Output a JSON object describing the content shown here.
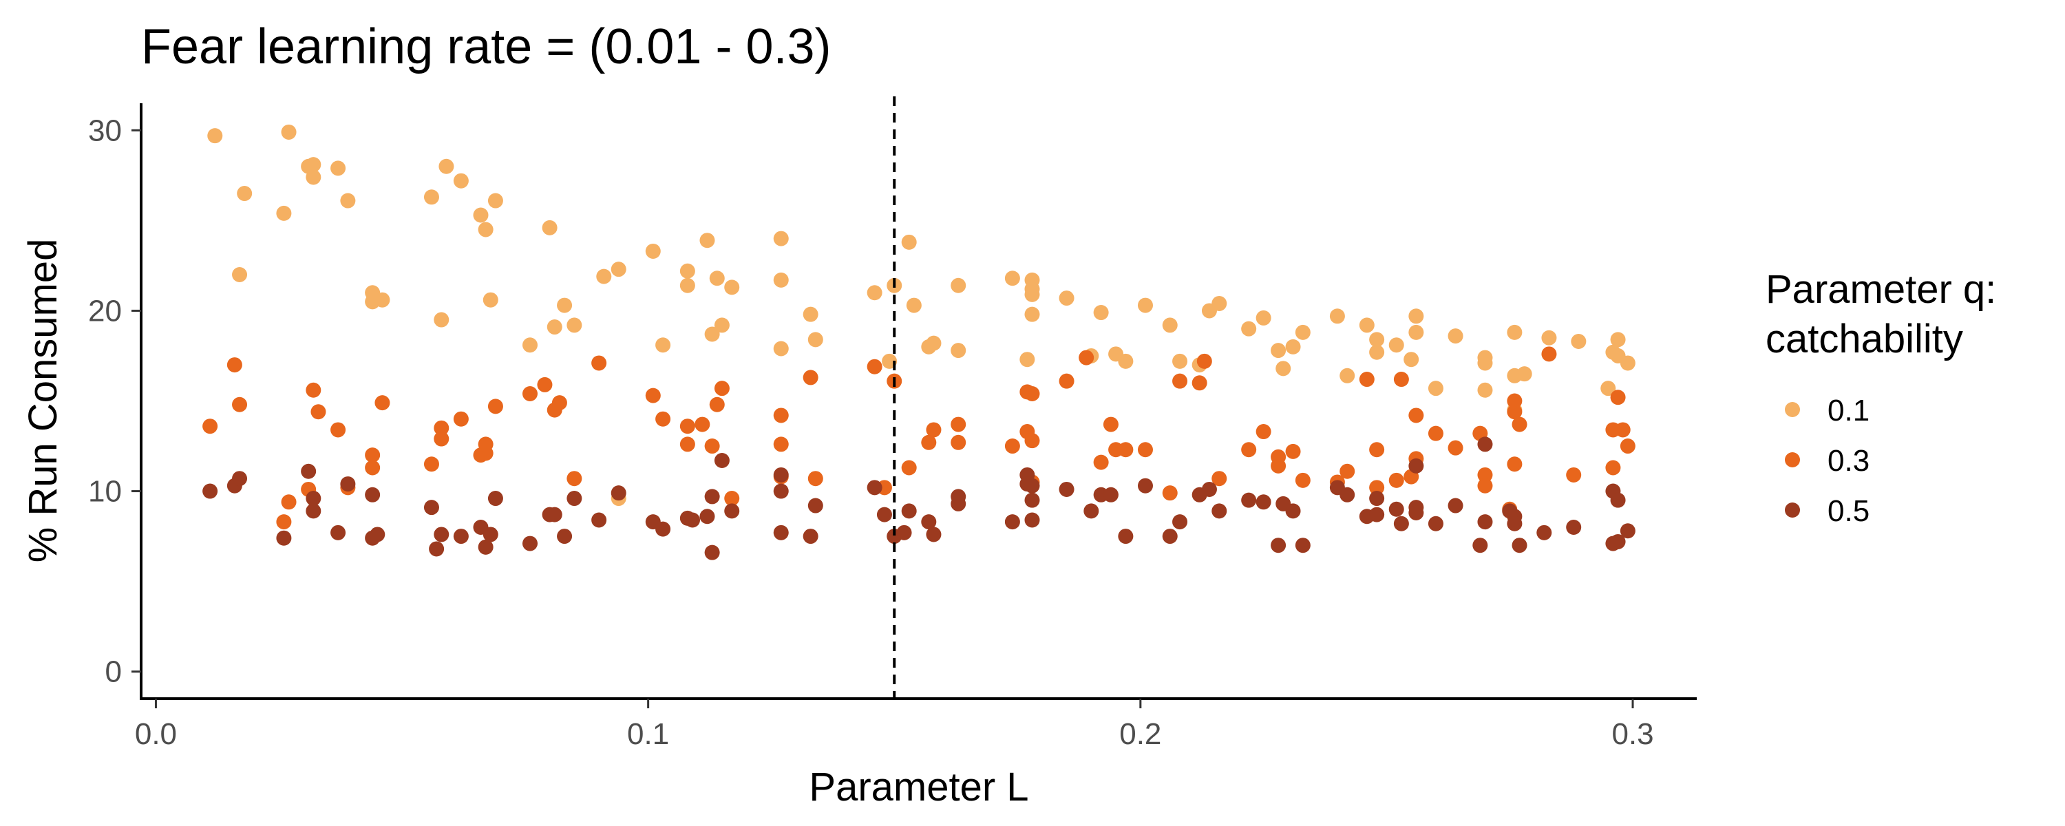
{
  "chart_data": {
    "type": "scatter",
    "title": "Fear learning rate = (0.01 - 0.3)",
    "xlabel": "Parameter L",
    "ylabel": "% Run Consumed",
    "xlim": [
      -0.003,
      0.313
    ],
    "ylim": [
      -1.5,
      31.5
    ],
    "xticks": [
      0.0,
      0.1,
      0.2,
      0.3
    ],
    "xtick_labels": [
      "0.0",
      "0.1",
      "0.2",
      "0.3"
    ],
    "yticks": [
      0,
      10,
      20,
      30
    ],
    "ytick_labels": [
      "0",
      "10",
      "20",
      "30"
    ],
    "grid": false,
    "reference_line": {
      "axis": "x",
      "value": 0.15,
      "style": "dashed"
    },
    "legend": {
      "title_lines": [
        "Parameter q:",
        "catchability"
      ],
      "position": "right"
    },
    "series": [
      {
        "name": "0.1",
        "color": "#f5b062",
        "points": [
          [
            0.012,
            29.7
          ],
          [
            0.017,
            22.0
          ],
          [
            0.018,
            26.5
          ],
          [
            0.026,
            25.4
          ],
          [
            0.027,
            29.9
          ],
          [
            0.031,
            28.0
          ],
          [
            0.032,
            28.1
          ],
          [
            0.032,
            27.4
          ],
          [
            0.037,
            27.9
          ],
          [
            0.039,
            26.1
          ],
          [
            0.044,
            21.0
          ],
          [
            0.044,
            20.5
          ],
          [
            0.046,
            20.6
          ],
          [
            0.056,
            26.3
          ],
          [
            0.058,
            19.5
          ],
          [
            0.059,
            28.0
          ],
          [
            0.062,
            27.2
          ],
          [
            0.066,
            25.3
          ],
          [
            0.067,
            24.5
          ],
          [
            0.068,
            20.6
          ],
          [
            0.069,
            26.1
          ],
          [
            0.076,
            18.1
          ],
          [
            0.08,
            24.6
          ],
          [
            0.081,
            19.1
          ],
          [
            0.083,
            20.3
          ],
          [
            0.085,
            19.2
          ],
          [
            0.091,
            21.9
          ],
          [
            0.094,
            22.3
          ],
          [
            0.094,
            9.6
          ],
          [
            0.101,
            23.3
          ],
          [
            0.103,
            18.1
          ],
          [
            0.108,
            22.2
          ],
          [
            0.108,
            21.4
          ],
          [
            0.112,
            23.9
          ],
          [
            0.113,
            18.7
          ],
          [
            0.114,
            21.8
          ],
          [
            0.115,
            19.2
          ],
          [
            0.117,
            21.3
          ],
          [
            0.127,
            24.0
          ],
          [
            0.127,
            21.7
          ],
          [
            0.127,
            17.9
          ],
          [
            0.133,
            19.8
          ],
          [
            0.134,
            18.4
          ],
          [
            0.146,
            21.0
          ],
          [
            0.149,
            17.2
          ],
          [
            0.15,
            21.4
          ],
          [
            0.153,
            23.8
          ],
          [
            0.154,
            20.3
          ],
          [
            0.157,
            18.0
          ],
          [
            0.158,
            18.2
          ],
          [
            0.163,
            21.4
          ],
          [
            0.163,
            17.8
          ],
          [
            0.174,
            21.8
          ],
          [
            0.177,
            17.3
          ],
          [
            0.178,
            21.7
          ],
          [
            0.178,
            21.2
          ],
          [
            0.178,
            20.9
          ],
          [
            0.178,
            19.8
          ],
          [
            0.185,
            20.7
          ],
          [
            0.19,
            17.5
          ],
          [
            0.192,
            19.9
          ],
          [
            0.195,
            17.6
          ],
          [
            0.197,
            17.2
          ],
          [
            0.201,
            20.3
          ],
          [
            0.206,
            19.2
          ],
          [
            0.208,
            17.2
          ],
          [
            0.212,
            17.0
          ],
          [
            0.214,
            20.0
          ],
          [
            0.216,
            20.4
          ],
          [
            0.222,
            19.0
          ],
          [
            0.225,
            19.6
          ],
          [
            0.228,
            17.8
          ],
          [
            0.229,
            16.8
          ],
          [
            0.231,
            18.0
          ],
          [
            0.233,
            18.8
          ],
          [
            0.24,
            19.7
          ],
          [
            0.242,
            16.4
          ],
          [
            0.246,
            19.2
          ],
          [
            0.248,
            18.4
          ],
          [
            0.248,
            17.7
          ],
          [
            0.252,
            18.1
          ],
          [
            0.255,
            17.3
          ],
          [
            0.256,
            19.7
          ],
          [
            0.256,
            18.8
          ],
          [
            0.26,
            15.7
          ],
          [
            0.264,
            18.6
          ],
          [
            0.27,
            17.1
          ],
          [
            0.27,
            17.4
          ],
          [
            0.27,
            15.6
          ],
          [
            0.276,
            16.4
          ],
          [
            0.276,
            18.8
          ],
          [
            0.276,
            14.5
          ],
          [
            0.278,
            16.5
          ],
          [
            0.283,
            18.5
          ],
          [
            0.289,
            18.3
          ],
          [
            0.295,
            15.7
          ],
          [
            0.296,
            17.7
          ],
          [
            0.297,
            18.4
          ],
          [
            0.297,
            17.5
          ],
          [
            0.299,
            17.1
          ]
        ]
      },
      {
        "name": "0.3",
        "color": "#e8661c",
        "points": [
          [
            0.011,
            13.6
          ],
          [
            0.016,
            17.0
          ],
          [
            0.017,
            14.8
          ],
          [
            0.026,
            8.3
          ],
          [
            0.027,
            9.4
          ],
          [
            0.031,
            10.1
          ],
          [
            0.032,
            15.6
          ],
          [
            0.033,
            14.4
          ],
          [
            0.037,
            13.4
          ],
          [
            0.039,
            10.2
          ],
          [
            0.044,
            12.0
          ],
          [
            0.044,
            11.3
          ],
          [
            0.046,
            14.9
          ],
          [
            0.056,
            11.5
          ],
          [
            0.058,
            13.5
          ],
          [
            0.058,
            12.9
          ],
          [
            0.062,
            14.0
          ],
          [
            0.066,
            12.0
          ],
          [
            0.067,
            12.1
          ],
          [
            0.067,
            12.6
          ],
          [
            0.069,
            14.7
          ],
          [
            0.076,
            15.4
          ],
          [
            0.079,
            15.9
          ],
          [
            0.081,
            14.5
          ],
          [
            0.082,
            14.9
          ],
          [
            0.085,
            10.7
          ],
          [
            0.09,
            17.1
          ],
          [
            0.101,
            15.3
          ],
          [
            0.103,
            14.0
          ],
          [
            0.108,
            13.6
          ],
          [
            0.108,
            12.6
          ],
          [
            0.111,
            13.7
          ],
          [
            0.113,
            12.5
          ],
          [
            0.114,
            14.8
          ],
          [
            0.115,
            15.7
          ],
          [
            0.117,
            9.6
          ],
          [
            0.127,
            14.2
          ],
          [
            0.127,
            12.6
          ],
          [
            0.127,
            10.8
          ],
          [
            0.133,
            16.3
          ],
          [
            0.134,
            10.7
          ],
          [
            0.146,
            16.9
          ],
          [
            0.148,
            10.2
          ],
          [
            0.15,
            16.1
          ],
          [
            0.153,
            11.3
          ],
          [
            0.157,
            12.7
          ],
          [
            0.158,
            13.4
          ],
          [
            0.163,
            13.7
          ],
          [
            0.163,
            12.7
          ],
          [
            0.174,
            12.5
          ],
          [
            0.177,
            15.5
          ],
          [
            0.177,
            13.3
          ],
          [
            0.178,
            12.8
          ],
          [
            0.178,
            15.4
          ],
          [
            0.178,
            10.5
          ],
          [
            0.185,
            16.1
          ],
          [
            0.189,
            17.4
          ],
          [
            0.192,
            11.6
          ],
          [
            0.194,
            13.7
          ],
          [
            0.195,
            12.3
          ],
          [
            0.197,
            12.3
          ],
          [
            0.201,
            12.3
          ],
          [
            0.206,
            9.9
          ],
          [
            0.208,
            16.1
          ],
          [
            0.212,
            16.0
          ],
          [
            0.213,
            17.2
          ],
          [
            0.216,
            10.7
          ],
          [
            0.222,
            12.3
          ],
          [
            0.225,
            13.3
          ],
          [
            0.228,
            11.9
          ],
          [
            0.228,
            11.4
          ],
          [
            0.231,
            12.2
          ],
          [
            0.233,
            10.6
          ],
          [
            0.24,
            10.5
          ],
          [
            0.242,
            11.1
          ],
          [
            0.246,
            16.2
          ],
          [
            0.248,
            12.3
          ],
          [
            0.248,
            10.2
          ],
          [
            0.252,
            10.6
          ],
          [
            0.253,
            16.2
          ],
          [
            0.255,
            10.8
          ],
          [
            0.256,
            14.2
          ],
          [
            0.256,
            11.8
          ],
          [
            0.26,
            13.2
          ],
          [
            0.264,
            12.4
          ],
          [
            0.269,
            13.2
          ],
          [
            0.27,
            10.9
          ],
          [
            0.27,
            10.3
          ],
          [
            0.275,
            9.0
          ],
          [
            0.276,
            11.5
          ],
          [
            0.276,
            15.0
          ],
          [
            0.276,
            14.4
          ],
          [
            0.277,
            13.7
          ],
          [
            0.283,
            17.6
          ],
          [
            0.288,
            10.9
          ],
          [
            0.296,
            11.3
          ],
          [
            0.296,
            13.4
          ],
          [
            0.297,
            15.2
          ],
          [
            0.298,
            13.4
          ],
          [
            0.299,
            12.5
          ]
        ]
      },
      {
        "name": "0.5",
        "color": "#9c3a1f",
        "points": [
          [
            0.011,
            10.0
          ],
          [
            0.016,
            10.3
          ],
          [
            0.017,
            10.7
          ],
          [
            0.026,
            7.4
          ],
          [
            0.031,
            11.1
          ],
          [
            0.032,
            9.6
          ],
          [
            0.032,
            8.9
          ],
          [
            0.037,
            7.7
          ],
          [
            0.039,
            10.4
          ],
          [
            0.044,
            9.8
          ],
          [
            0.044,
            7.4
          ],
          [
            0.045,
            7.6
          ],
          [
            0.056,
            9.1
          ],
          [
            0.057,
            6.8
          ],
          [
            0.058,
            7.6
          ],
          [
            0.062,
            7.5
          ],
          [
            0.066,
            8.0
          ],
          [
            0.067,
            6.9
          ],
          [
            0.068,
            7.6
          ],
          [
            0.069,
            9.6
          ],
          [
            0.076,
            7.1
          ],
          [
            0.08,
            8.7
          ],
          [
            0.081,
            8.7
          ],
          [
            0.083,
            7.5
          ],
          [
            0.085,
            9.6
          ],
          [
            0.09,
            8.4
          ],
          [
            0.094,
            9.9
          ],
          [
            0.101,
            8.3
          ],
          [
            0.103,
            7.9
          ],
          [
            0.108,
            8.5
          ],
          [
            0.109,
            8.4
          ],
          [
            0.112,
            8.6
          ],
          [
            0.113,
            9.7
          ],
          [
            0.113,
            6.6
          ],
          [
            0.115,
            11.7
          ],
          [
            0.117,
            8.9
          ],
          [
            0.127,
            10.9
          ],
          [
            0.127,
            10.0
          ],
          [
            0.127,
            7.7
          ],
          [
            0.133,
            7.5
          ],
          [
            0.134,
            9.2
          ],
          [
            0.146,
            10.2
          ],
          [
            0.148,
            8.7
          ],
          [
            0.15,
            7.5
          ],
          [
            0.152,
            7.7
          ],
          [
            0.153,
            8.9
          ],
          [
            0.157,
            8.3
          ],
          [
            0.158,
            7.6
          ],
          [
            0.163,
            9.3
          ],
          [
            0.163,
            9.7
          ],
          [
            0.174,
            8.3
          ],
          [
            0.177,
            10.9
          ],
          [
            0.177,
            10.4
          ],
          [
            0.178,
            9.5
          ],
          [
            0.178,
            8.4
          ],
          [
            0.178,
            10.3
          ],
          [
            0.185,
            10.1
          ],
          [
            0.19,
            8.9
          ],
          [
            0.192,
            9.8
          ],
          [
            0.194,
            9.8
          ],
          [
            0.197,
            7.5
          ],
          [
            0.201,
            10.3
          ],
          [
            0.206,
            7.5
          ],
          [
            0.208,
            8.3
          ],
          [
            0.212,
            9.8
          ],
          [
            0.214,
            10.1
          ],
          [
            0.216,
            8.9
          ],
          [
            0.222,
            9.5
          ],
          [
            0.225,
            9.4
          ],
          [
            0.228,
            7.0
          ],
          [
            0.229,
            9.3
          ],
          [
            0.231,
            8.9
          ],
          [
            0.233,
            7.0
          ],
          [
            0.24,
            10.2
          ],
          [
            0.242,
            9.8
          ],
          [
            0.246,
            8.6
          ],
          [
            0.248,
            9.6
          ],
          [
            0.248,
            8.7
          ],
          [
            0.252,
            9.0
          ],
          [
            0.253,
            8.2
          ],
          [
            0.256,
            9.1
          ],
          [
            0.256,
            8.8
          ],
          [
            0.256,
            11.4
          ],
          [
            0.26,
            8.2
          ],
          [
            0.264,
            9.2
          ],
          [
            0.269,
            7.0
          ],
          [
            0.27,
            12.6
          ],
          [
            0.27,
            8.3
          ],
          [
            0.275,
            8.9
          ],
          [
            0.276,
            8.6
          ],
          [
            0.276,
            8.2
          ],
          [
            0.277,
            7.0
          ],
          [
            0.282,
            7.7
          ],
          [
            0.288,
            8.0
          ],
          [
            0.296,
            7.1
          ],
          [
            0.296,
            10.0
          ],
          [
            0.297,
            9.5
          ],
          [
            0.297,
            7.2
          ],
          [
            0.299,
            7.8
          ]
        ]
      }
    ]
  }
}
